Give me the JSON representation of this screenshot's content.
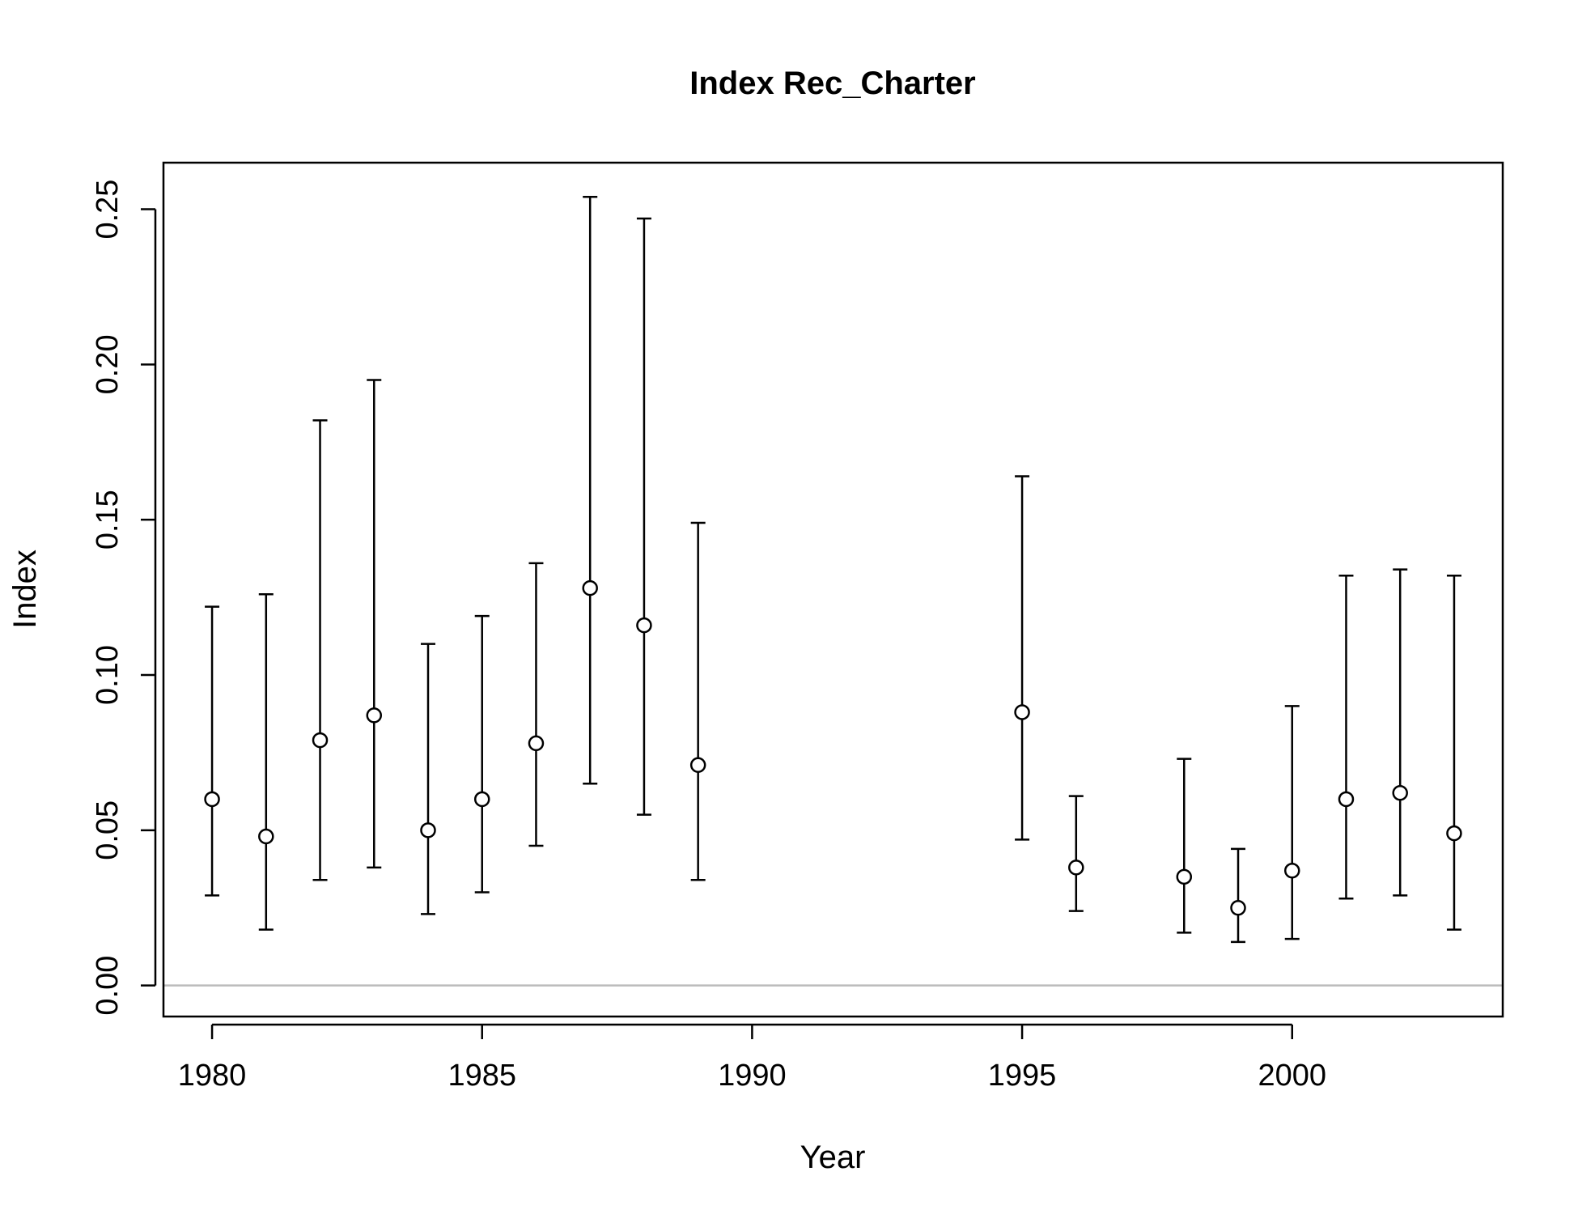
{
  "chart_data": {
    "type": "scatter",
    "title": "Index Rec_Charter",
    "xlabel": "Year",
    "ylabel": "Index",
    "xlim": [
      1979.1,
      2003.9
    ],
    "ylim": [
      -0.01,
      0.265
    ],
    "x_ticks": [
      1980,
      1985,
      1990,
      1995,
      2000
    ],
    "x_tick_labels": [
      "1980",
      "1985",
      "1990",
      "1995",
      "2000"
    ],
    "y_ticks": [
      0,
      0.05,
      0.1,
      0.15,
      0.2,
      0.25
    ],
    "y_tick_labels": [
      "0.00",
      "0.05",
      "0.10",
      "0.15",
      "0.20",
      "0.25"
    ],
    "reference_line": {
      "y": 0,
      "color": "#bbbbbb"
    },
    "grid": false,
    "series": [
      {
        "marker": "open-circle",
        "x": [
          1980,
          1981,
          1982,
          1983,
          1984,
          1985,
          1986,
          1987,
          1988,
          1989,
          1995,
          1996,
          1998,
          1999,
          2000,
          2001,
          2002,
          2003
        ],
        "y": [
          0.06,
          0.048,
          0.079,
          0.087,
          0.05,
          0.06,
          0.078,
          0.128,
          0.116,
          0.071,
          0.088,
          0.038,
          0.035,
          0.025,
          0.037,
          0.06,
          0.062,
          0.049
        ],
        "lower": [
          0.029,
          0.018,
          0.034,
          0.038,
          0.023,
          0.03,
          0.045,
          0.065,
          0.055,
          0.034,
          0.047,
          0.024,
          0.017,
          0.014,
          0.015,
          0.028,
          0.029,
          0.018
        ],
        "upper": [
          0.122,
          0.126,
          0.182,
          0.195,
          0.11,
          0.119,
          0.136,
          0.254,
          0.247,
          0.149,
          0.164,
          0.061,
          0.073,
          0.044,
          0.09,
          0.132,
          0.134,
          0.132
        ]
      }
    ]
  }
}
